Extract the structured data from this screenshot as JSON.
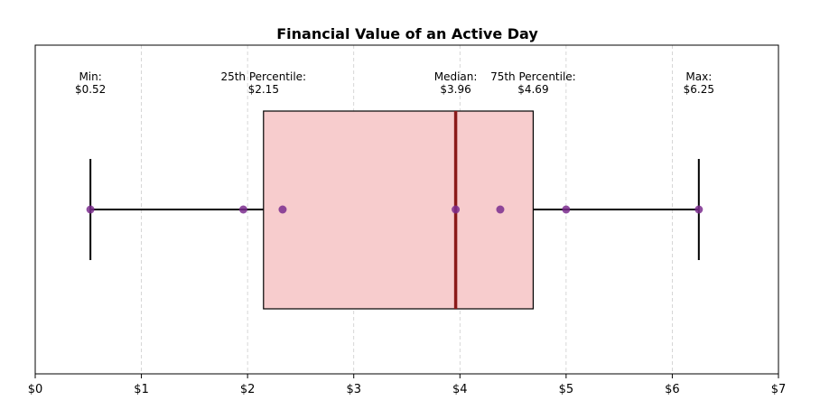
{
  "chart_data": {
    "type": "boxplot",
    "title": "Financial Value of an Active Day",
    "xlabel": "",
    "ylabel": "",
    "xlim": [
      0,
      7
    ],
    "x_ticks": [
      0,
      1,
      2,
      3,
      4,
      5,
      6,
      7
    ],
    "x_tick_labels": [
      "$0",
      "$1",
      "$2",
      "$3",
      "$4",
      "$5",
      "$6",
      "$7"
    ],
    "grid": "x-dashed",
    "box": {
      "min": 0.52,
      "q1": 2.15,
      "median": 3.96,
      "q3": 4.69,
      "max": 6.25
    },
    "points": [
      0.52,
      1.96,
      2.33,
      3.96,
      4.38,
      5.0,
      6.25
    ],
    "annotations": [
      {
        "label": "Min:",
        "value_text": "$0.52",
        "x": 0.52
      },
      {
        "label": "25th Percentile:",
        "value_text": "$2.15",
        "x": 2.15
      },
      {
        "label": "Median:",
        "value_text": "$3.96",
        "x": 3.96
      },
      {
        "label": "75th Percentile:",
        "value_text": "$4.69",
        "x": 4.69
      },
      {
        "label": "Max:",
        "value_text": "$6.25",
        "x": 6.25
      }
    ],
    "colors": {
      "box_fill": "#f7cccd",
      "box_edge": "#000000",
      "median_line": "#8b1a1a",
      "whisker": "#000000",
      "points": "#7b2d8e",
      "grid": "#cccccc"
    }
  }
}
